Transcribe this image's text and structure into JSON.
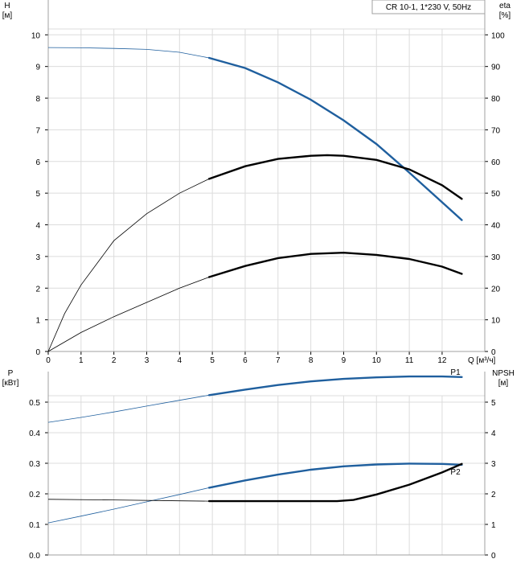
{
  "chart_data": [
    {
      "type": "line",
      "title": "CR 10-1, 1*230 V, 50Hz",
      "xlabel": "Q [м³/ч]",
      "ylabel_left": [
        "H",
        "[м]"
      ],
      "ylabel_right": [
        "eta",
        "[%]"
      ],
      "xlim": [
        0,
        13.3
      ],
      "ylim_left": [
        0,
        11.1
      ],
      "ylim_right": [
        0,
        111
      ],
      "x_ticks": [
        0,
        1,
        2,
        3,
        4,
        5,
        6,
        7,
        8,
        9,
        10,
        11,
        12
      ],
      "y_ticks_left": [
        0,
        1,
        2,
        3,
        4,
        5,
        6,
        7,
        8,
        9,
        10
      ],
      "y_ticks_right": [
        0,
        10,
        20,
        30,
        40,
        50,
        60,
        70,
        80,
        90,
        100
      ],
      "grid": true,
      "series": [
        {
          "axis": "left",
          "color": "#1f5f9e",
          "operating_from": 4.9,
          "points": [
            [
              0,
              9.6
            ],
            [
              1,
              9.59
            ],
            [
              2,
              9.57
            ],
            [
              3,
              9.54
            ],
            [
              4,
              9.45
            ],
            [
              4.9,
              9.27
            ],
            [
              6,
              8.95
            ],
            [
              7,
              8.5
            ],
            [
              8,
              7.95
            ],
            [
              9,
              7.3
            ],
            [
              10,
              6.55
            ],
            [
              11,
              5.65
            ],
            [
              12.6,
              4.15
            ]
          ]
        },
        {
          "axis": "right",
          "color": "#000000",
          "operating_from": 4.9,
          "points": [
            [
              0,
              0
            ],
            [
              0.5,
              12
            ],
            [
              1,
              21
            ],
            [
              2,
              35
            ],
            [
              3,
              43.5
            ],
            [
              4,
              50
            ],
            [
              4.9,
              54.5
            ],
            [
              6,
              58.5
            ],
            [
              7,
              60.8
            ],
            [
              8,
              61.8
            ],
            [
              8.5,
              62
            ],
            [
              9,
              61.8
            ],
            [
              10,
              60.5
            ],
            [
              11,
              57.5
            ],
            [
              12,
              52.5
            ],
            [
              12.6,
              48.2
            ]
          ]
        },
        {
          "axis": "right",
          "color": "#000000",
          "operating_from": 4.9,
          "points": [
            [
              0,
              0
            ],
            [
              1,
              6
            ],
            [
              2,
              11
            ],
            [
              3,
              15.5
            ],
            [
              4,
              20
            ],
            [
              4.9,
              23.5
            ],
            [
              6,
              27
            ],
            [
              7,
              29.5
            ],
            [
              8,
              30.8
            ],
            [
              9,
              31.2
            ],
            [
              10,
              30.5
            ],
            [
              11,
              29.2
            ],
            [
              12,
              26.8
            ],
            [
              12.6,
              24.5
            ]
          ]
        }
      ]
    },
    {
      "type": "line",
      "ylabel_left": [
        "P",
        "[кВт]"
      ],
      "ylabel_right": [
        "NPSH",
        "[м]"
      ],
      "xlim": [
        0,
        13.3
      ],
      "ylim_left": [
        0,
        0.6
      ],
      "ylim_right": [
        0,
        6
      ],
      "y_ticks_left": [
        "0.0",
        "0.1",
        "0.2",
        "0.3",
        "0.4",
        "0.5"
      ],
      "y_ticks_left_values": [
        0,
        0.1,
        0.2,
        0.3,
        0.4,
        0.5
      ],
      "y_ticks_right": [
        0,
        1,
        2,
        3,
        4,
        5
      ],
      "grid": true,
      "series": [
        {
          "name": "P1",
          "axis": "left",
          "color": "#1f5f9e",
          "operating_from": 4.9,
          "points": [
            [
              0,
              0.434
            ],
            [
              1,
              0.45
            ],
            [
              2,
              0.468
            ],
            [
              3,
              0.487
            ],
            [
              4,
              0.506
            ],
            [
              4.9,
              0.523
            ],
            [
              6,
              0.541
            ],
            [
              7,
              0.556
            ],
            [
              8,
              0.568
            ],
            [
              9,
              0.576
            ],
            [
              10,
              0.581
            ],
            [
              11,
              0.584
            ],
            [
              12,
              0.584
            ],
            [
              12.6,
              0.582
            ]
          ]
        },
        {
          "name": "P2",
          "axis": "left",
          "color": "#1f5f9e",
          "operating_from": 4.9,
          "points": [
            [
              0,
              0.105
            ],
            [
              1,
              0.127
            ],
            [
              2,
              0.15
            ],
            [
              3,
              0.174
            ],
            [
              4,
              0.198
            ],
            [
              4.9,
              0.22
            ],
            [
              6,
              0.244
            ],
            [
              7,
              0.263
            ],
            [
              8,
              0.279
            ],
            [
              9,
              0.29
            ],
            [
              10,
              0.296
            ],
            [
              11,
              0.299
            ],
            [
              12,
              0.298
            ],
            [
              12.6,
              0.295
            ]
          ]
        },
        {
          "axis": "right",
          "color": "#000000",
          "operating_from": 4.9,
          "points": [
            [
              0,
              1.82
            ],
            [
              2,
              1.8
            ],
            [
              4,
              1.77
            ],
            [
              4.9,
              1.76
            ],
            [
              6,
              1.76
            ],
            [
              8,
              1.76
            ],
            [
              8.8,
              1.76
            ],
            [
              9.3,
              1.8
            ],
            [
              10,
              1.98
            ],
            [
              11,
              2.3
            ],
            [
              12,
              2.7
            ],
            [
              12.6,
              2.98
            ]
          ]
        }
      ]
    }
  ]
}
